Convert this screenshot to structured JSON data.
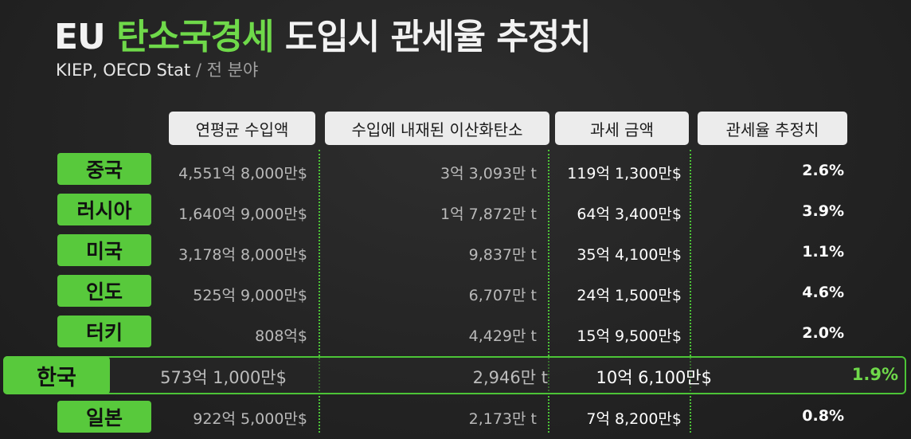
{
  "title": {
    "part1": "EU ",
    "part2": "탄소국경세",
    "part3": " 도입시 관세율 추정치"
  },
  "subtitle": {
    "source": "KIEP, OECD Stat",
    "scope": " / 전 분야"
  },
  "headers": [
    "연평균 수입액",
    "수입에 내재된 이산화탄소",
    "과세 금액",
    "관세율 추정치"
  ],
  "rows": [
    {
      "country": "중국",
      "import": "4,551억 8,000만$",
      "co2": "3억 3,093만 t",
      "tax": "119억 1,300만$",
      "rate": "2.6%"
    },
    {
      "country": "러시아",
      "import": "1,640억 9,000만$",
      "co2": "1억 7,872만 t",
      "tax": "64억 3,400만$",
      "rate": "3.9%"
    },
    {
      "country": "미국",
      "import": "3,178억 8,000만$",
      "co2": "9,837만 t",
      "tax": "35억 4,100만$",
      "rate": "1.1%"
    },
    {
      "country": "인도",
      "import": "525억 9,000만$",
      "co2": "6,707만 t",
      "tax": "24억 1,500만$",
      "rate": "4.6%"
    },
    {
      "country": "터키",
      "import": "808억$",
      "co2": "4,429만 t",
      "tax": "15억 9,500만$",
      "rate": "2.0%"
    }
  ],
  "highlight": {
    "country": "한국",
    "import": "573억 1,000만$",
    "co2": "2,946만 t",
    "tax": "10억 6,100만$",
    "rate": "1.9%"
  },
  "last_row": {
    "country": "일본",
    "import": "922억 5,000만$",
    "co2": "2,173만 t",
    "tax": "7억 8,200만$",
    "rate": "0.8%"
  },
  "colors": {
    "accent": "#58c93c",
    "background": "#262626"
  }
}
